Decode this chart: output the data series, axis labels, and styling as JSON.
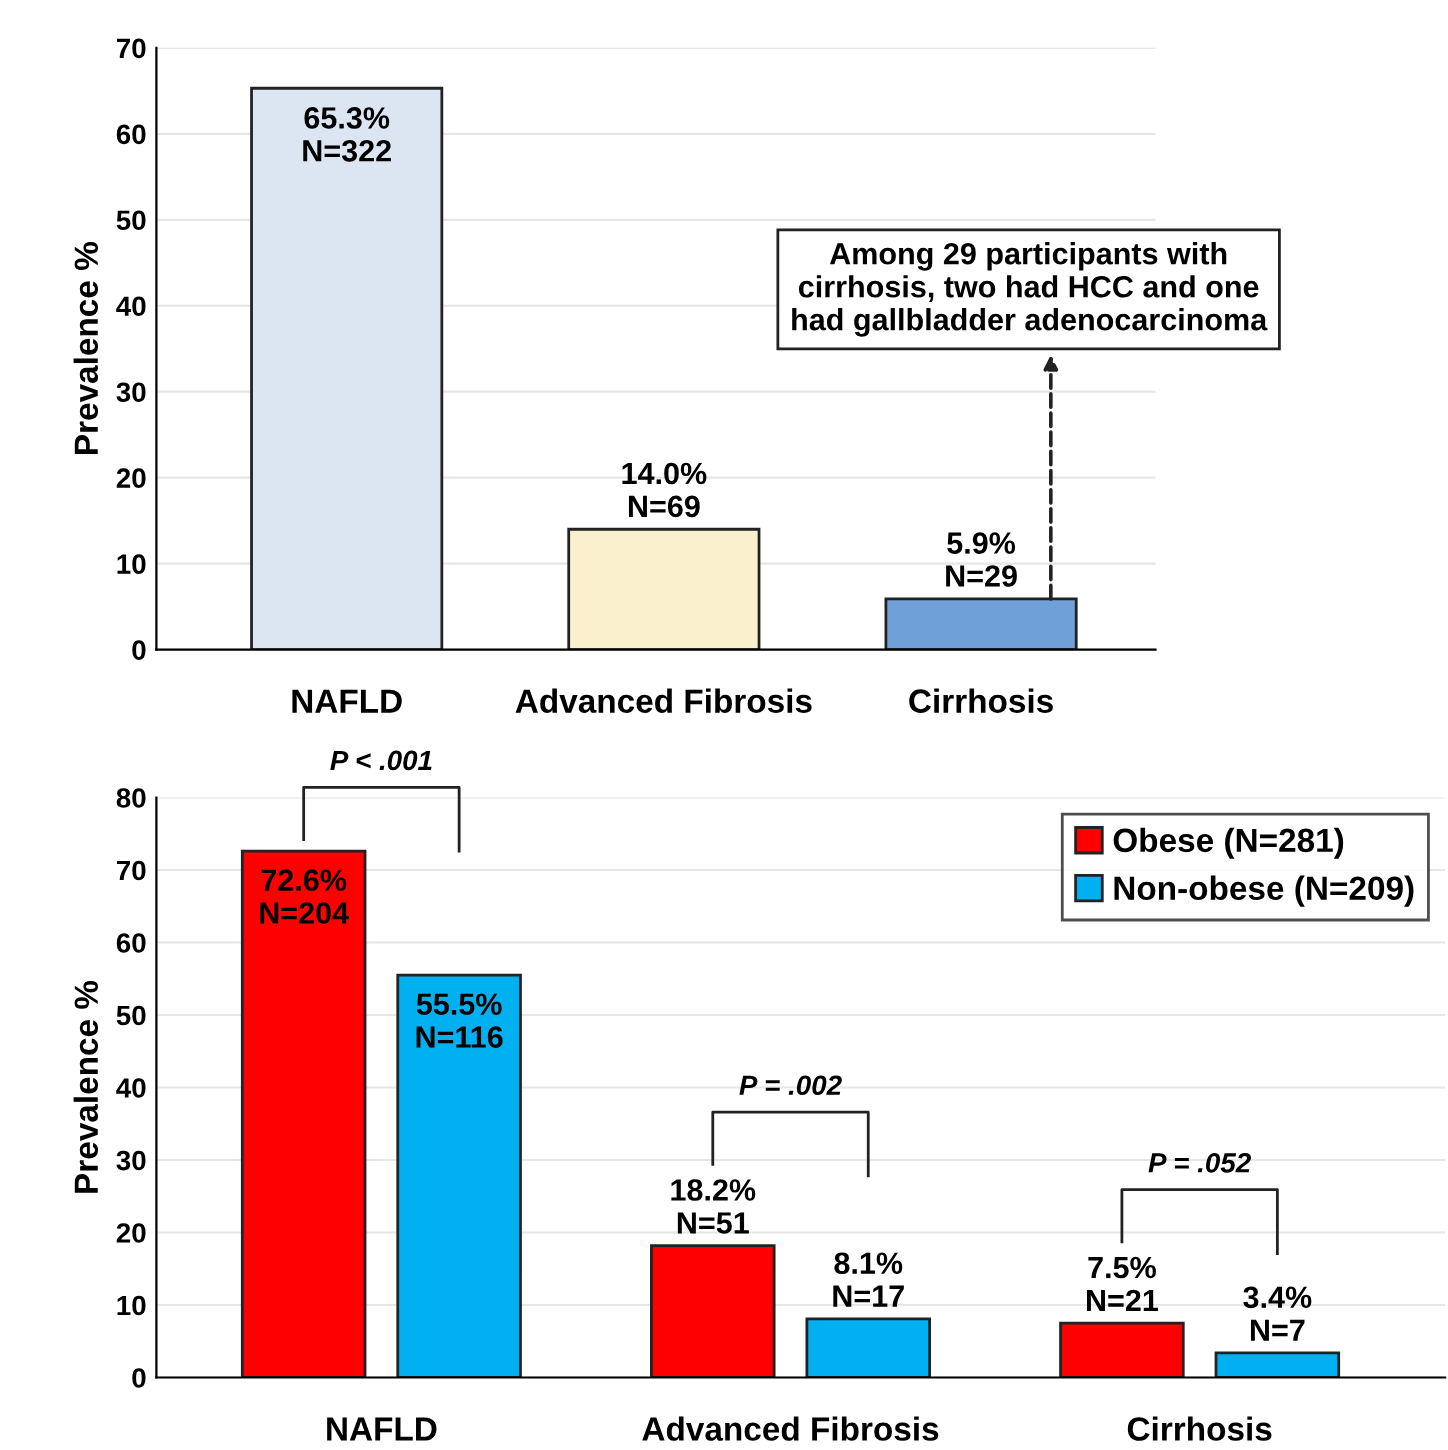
{
  "chart_data": [
    {
      "type": "bar",
      "ylabel": "Prevalence %",
      "categories": [
        "NAFLD",
        "Advanced Fibrosis",
        "Cirrhosis"
      ],
      "values": [
        65.3,
        14.0,
        5.9
      ],
      "colors": [
        "#dce6f2",
        "#fbf0cd",
        "#6fa0d8"
      ],
      "value_labels": [
        "65.3%\nN=322",
        "14.0%\nN=69",
        "5.9%\nN=29"
      ],
      "ylim": [
        0,
        70
      ],
      "yticks": [
        0,
        10,
        20,
        30,
        40,
        50,
        60,
        70
      ],
      "grid": "y",
      "legend": false,
      "annotations": [
        "Among 29 participants with\ncirrhosis, two had HCC and one\nhad gallbladder adenocarcinoma"
      ]
    },
    {
      "type": "bar",
      "ylabel": "Prevalence %",
      "categories": [
        "NAFLD",
        "Advanced Fibrosis",
        "Cirrhosis"
      ],
      "series": [
        {
          "name": "Obese (N=281)",
          "color": "#ff0000",
          "values": [
            72.6,
            18.2,
            7.5
          ],
          "value_labels": [
            "72.6%\nN=204",
            "18.2%\nN=51",
            "7.5%\nN=21"
          ]
        },
        {
          "name": "Non-obese (N=209)",
          "color": "#00b0f0",
          "values": [
            55.5,
            8.1,
            3.4
          ],
          "value_labels": [
            "55.5%\nN=116",
            "8.1%\nN=17",
            "3.4%\nN=7"
          ]
        }
      ],
      "ylim": [
        0,
        80
      ],
      "yticks": [
        0,
        10,
        20,
        30,
        40,
        50,
        60,
        70,
        80
      ],
      "grid": "y",
      "legend": "top right",
      "annotations": [
        "P < .001",
        "P = .002",
        "P = .052"
      ]
    }
  ]
}
